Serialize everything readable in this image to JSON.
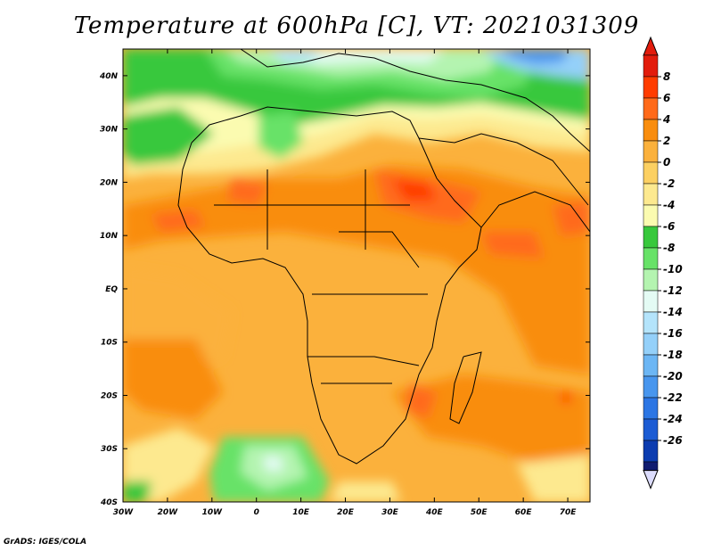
{
  "title": "Temperature at 600hPa [C], VT: 2021031309",
  "credit": "GrADS: IGES/COLA",
  "map": {
    "lon_range": [
      -30,
      75
    ],
    "lat_range": [
      -40,
      45
    ],
    "x_ticks": [
      {
        "lon": -30,
        "label": "30W"
      },
      {
        "lon": -20,
        "label": "20W"
      },
      {
        "lon": -10,
        "label": "10W"
      },
      {
        "lon": 0,
        "label": "0"
      },
      {
        "lon": 10,
        "label": "10E"
      },
      {
        "lon": 20,
        "label": "20E"
      },
      {
        "lon": 30,
        "label": "30E"
      },
      {
        "lon": 40,
        "label": "40E"
      },
      {
        "lon": 50,
        "label": "50E"
      },
      {
        "lon": 60,
        "label": "60E"
      },
      {
        "lon": 70,
        "label": "70E"
      }
    ],
    "y_ticks": [
      {
        "lat": 40,
        "label": "40N"
      },
      {
        "lat": 30,
        "label": "30N"
      },
      {
        "lat": 20,
        "label": "20N"
      },
      {
        "lat": 10,
        "label": "10N"
      },
      {
        "lat": 0,
        "label": "EQ"
      },
      {
        "lat": -10,
        "label": "10S"
      },
      {
        "lat": -20,
        "label": "20S"
      },
      {
        "lat": -30,
        "label": "30S"
      },
      {
        "lat": -40,
        "label": "40S"
      }
    ]
  },
  "colorbar": {
    "levels": [
      {
        "label": "8",
        "color": "#ff3c00"
      },
      {
        "label": "6",
        "color": "#ff6a1a"
      },
      {
        "label": "4",
        "color": "#f98d0e"
      },
      {
        "label": "2",
        "color": "#fbb13c"
      },
      {
        "label": "0",
        "color": "#fcd062"
      },
      {
        "label": "-2",
        "color": "#fde98f"
      },
      {
        "label": "-4",
        "color": "#fbfbb0"
      },
      {
        "label": "-6",
        "color": "#38c83c"
      },
      {
        "label": "-8",
        "color": "#68e268"
      },
      {
        "label": "-10",
        "color": "#b4f4b0"
      },
      {
        "label": "-12",
        "color": "#e4fbf4"
      },
      {
        "label": "-14",
        "color": "#b4e4fb"
      },
      {
        "label": "-16",
        "color": "#94d0f9"
      },
      {
        "label": "-18",
        "color": "#6cb6f4"
      },
      {
        "label": "-20",
        "color": "#4896ee"
      },
      {
        "label": "-22",
        "color": "#2c76e4"
      },
      {
        "label": "-24",
        "color": "#1c5cd4"
      },
      {
        "label": "-26",
        "color": "#0c3cb0"
      }
    ],
    "top_color": "#e21c0c",
    "bottom_color": "#101c70",
    "bottom_tip_color": "#dcdcfc"
  }
}
